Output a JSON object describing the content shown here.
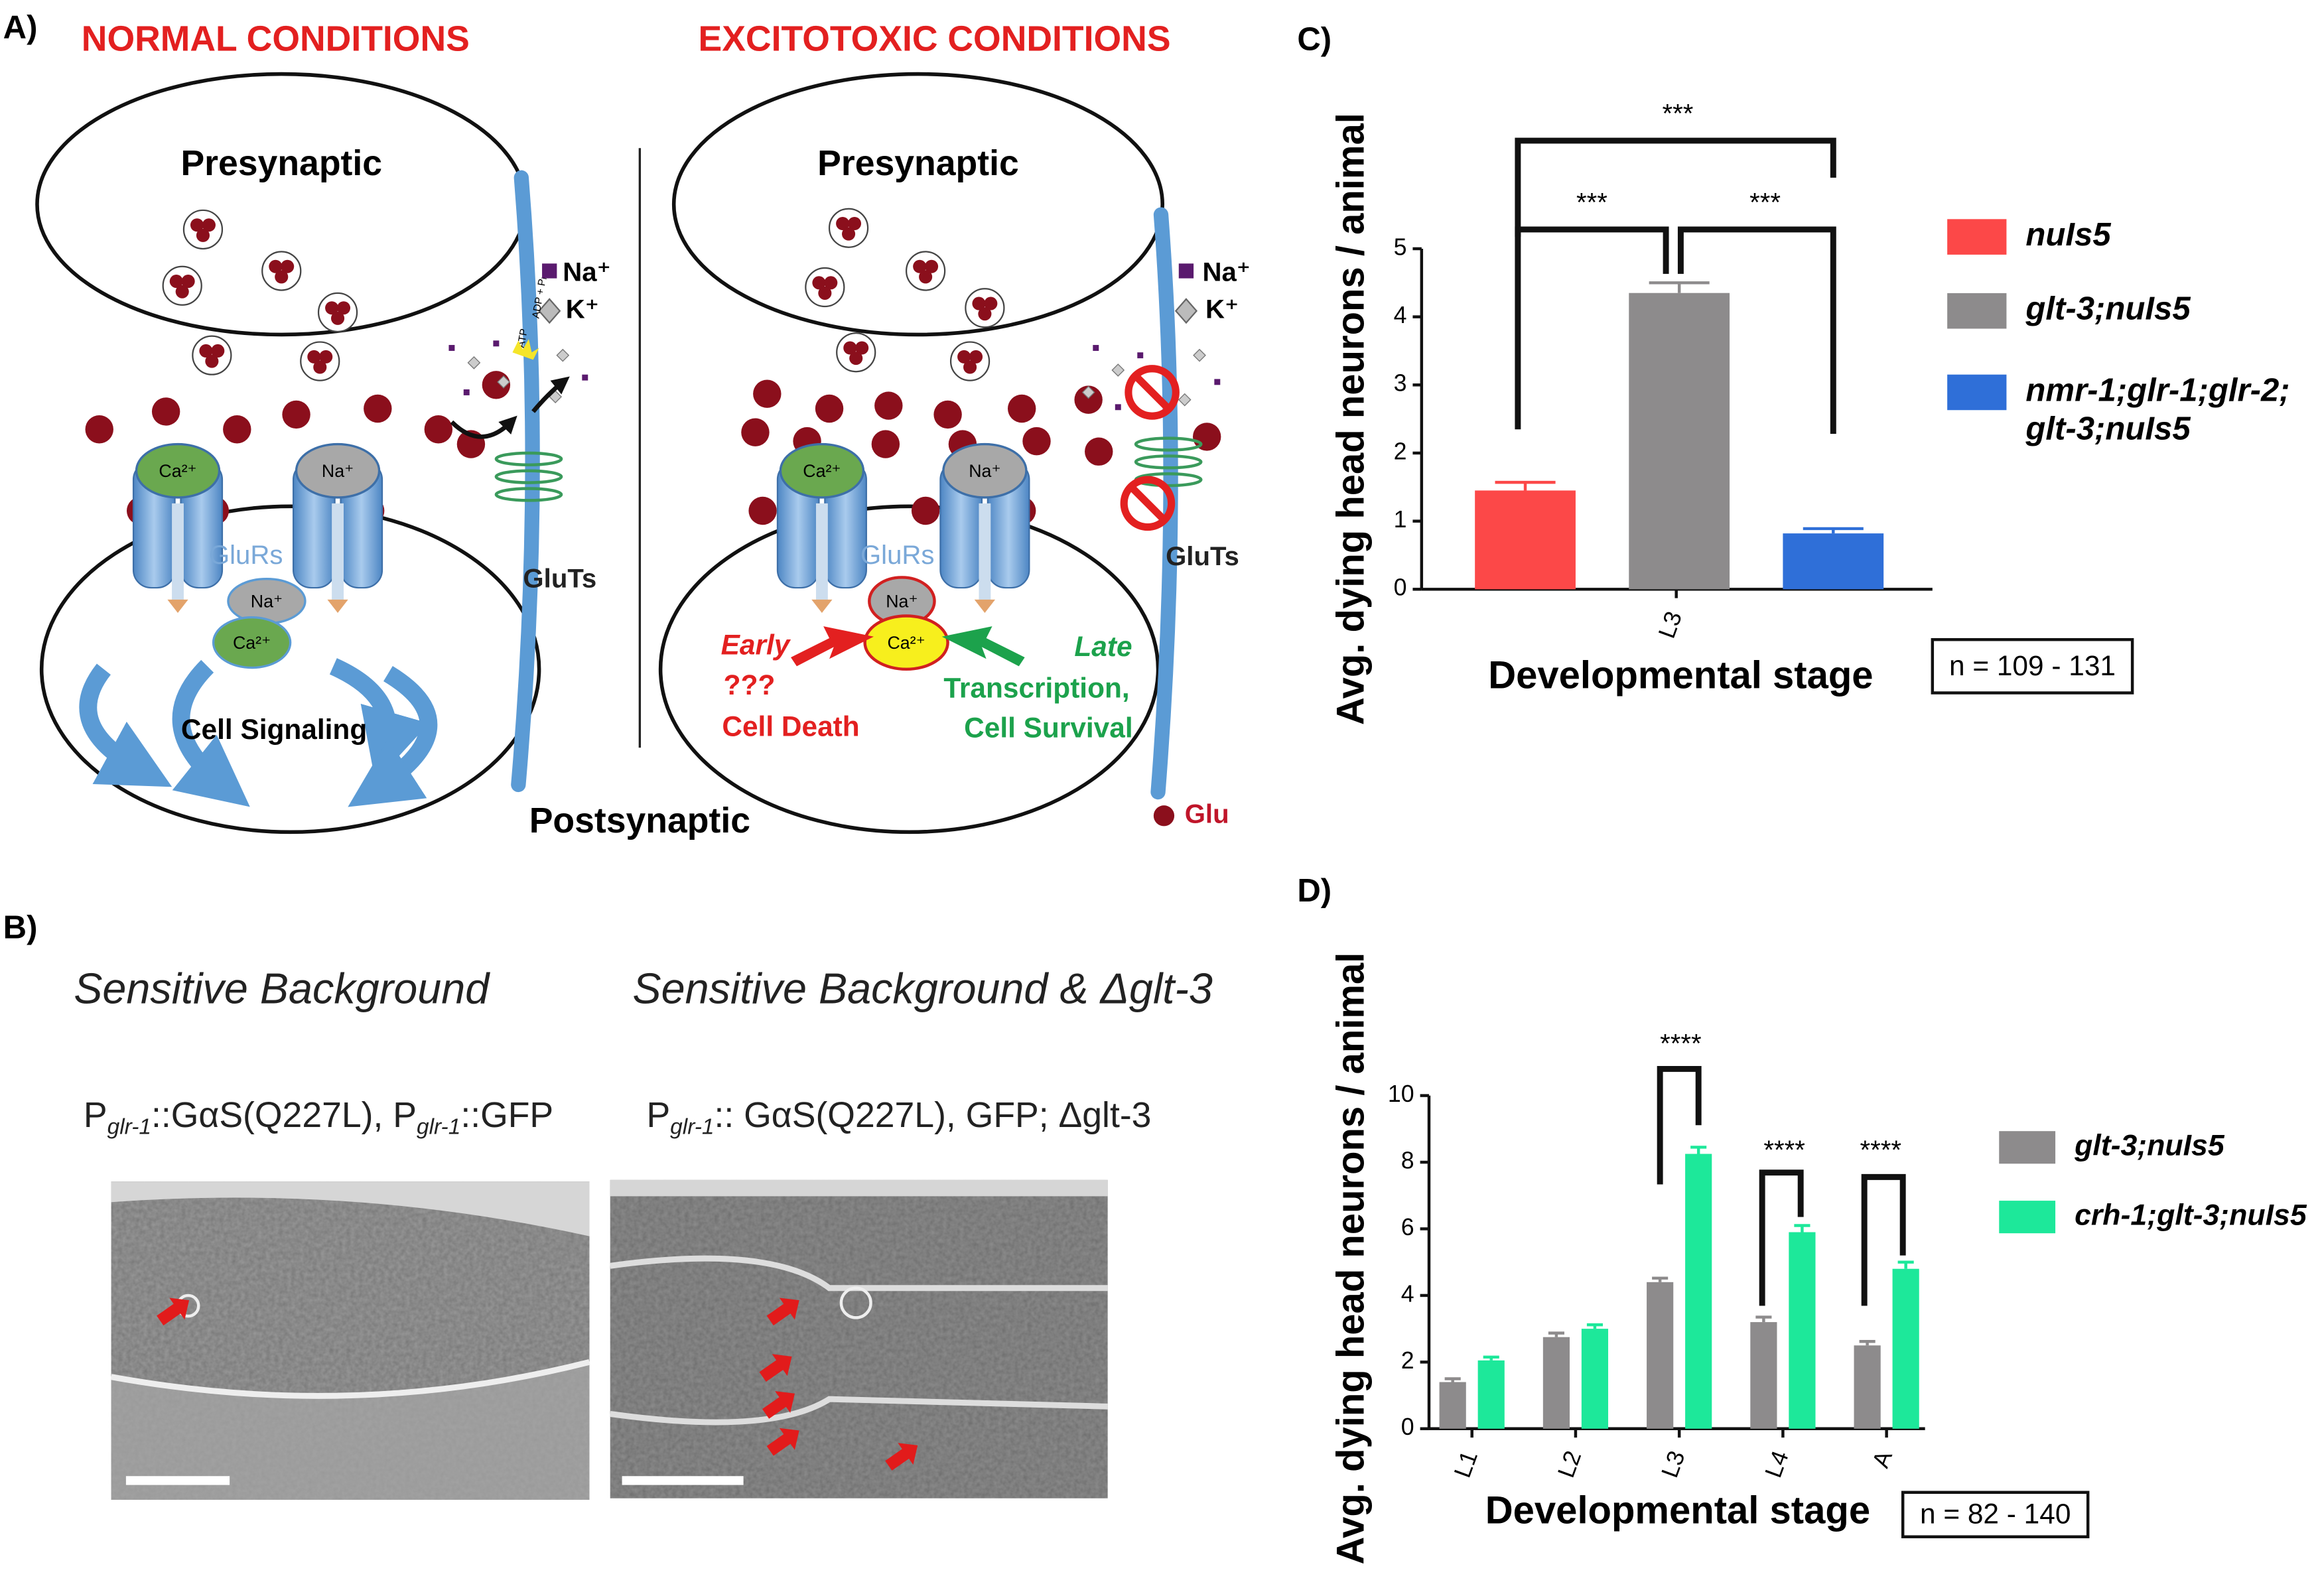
{
  "panel_labels": {
    "a": "A)",
    "b": "B)",
    "c": "C)",
    "d": "D)"
  },
  "diagram": {
    "normal_title": "NORMAL CONDITIONS",
    "excitotoxic_title": "EXCITOTOXIC CONDITIONS",
    "presynaptic": "Presynaptic",
    "postsynaptic": "Postsynaptic",
    "na": "Na⁺",
    "k": "K⁺",
    "ca": "Ca²⁺",
    "atp": "ATP",
    "adp": "ADP + Pᵢ",
    "glurs": "GluRs",
    "gluts": "GluTs",
    "cell_signaling": "Cell Signaling",
    "glu": "Glu",
    "early": "Early",
    "unknown": "???",
    "cell_death": "Cell Death",
    "late": "Late",
    "transcription": "Transcription,",
    "cell_survival": "Cell Survival"
  },
  "micrographs": {
    "left": {
      "title": "Sensitive Background",
      "caption": [
        "P",
        "glr-1",
        "::GαS(Q227L), P",
        "glr-1",
        "::GFP"
      ]
    },
    "right": {
      "title": "Sensitive Background & Δglt-3",
      "caption": [
        "P",
        "glr-1",
        ":: GαS(Q227L), GFP; Δglt-3"
      ]
    }
  },
  "chart_data": [
    {
      "type": "bar",
      "y_label": "Avg. dying head neurons / animal",
      "x_label": "Developmental stage",
      "note": "n = 109 - 131",
      "categories": [
        "L3"
      ],
      "series": [
        {
          "name": "nuIs5",
          "color": "#fc4848",
          "values": [
            1.45
          ],
          "errors": [
            0.12
          ]
        },
        {
          "name": "glt-3;nuIs5",
          "color": "#8d8b8c",
          "values": [
            4.35
          ],
          "errors": [
            0.15
          ]
        },
        {
          "name": "nmr-1;glr-1;glr-2; glt-3;nuIs5",
          "color": "#2f6fd8",
          "values": [
            0.82
          ],
          "errors": [
            0.07
          ]
        }
      ],
      "ylim": [
        0,
        5
      ],
      "yticks": [
        0,
        1,
        2,
        3,
        4,
        5
      ],
      "annotations": [
        "***",
        "***",
        "***"
      ]
    },
    {
      "type": "bar",
      "y_label": "Avg. dying head neurons / animal",
      "x_label": "Developmental stage",
      "note": "n = 82 - 140",
      "categories": [
        "L1",
        "L2",
        "L3",
        "L4",
        "A"
      ],
      "series": [
        {
          "name": "glt-3;nuIs5",
          "color": "#8d8b8c",
          "values": [
            1.4,
            2.75,
            4.4,
            3.2,
            2.5
          ],
          "errors": [
            0.1,
            0.12,
            0.12,
            0.15,
            0.12
          ]
        },
        {
          "name": "crh-1;glt-3;nuIs5",
          "color": "#1de89a",
          "values": [
            2.05,
            3.0,
            8.25,
            5.9,
            4.8
          ],
          "errors": [
            0.1,
            0.12,
            0.2,
            0.2,
            0.2
          ]
        }
      ],
      "ylim": [
        0,
        10
      ],
      "yticks": [
        0,
        2,
        4,
        6,
        8,
        10
      ],
      "annotations": [
        "****",
        "****",
        "****"
      ]
    }
  ]
}
